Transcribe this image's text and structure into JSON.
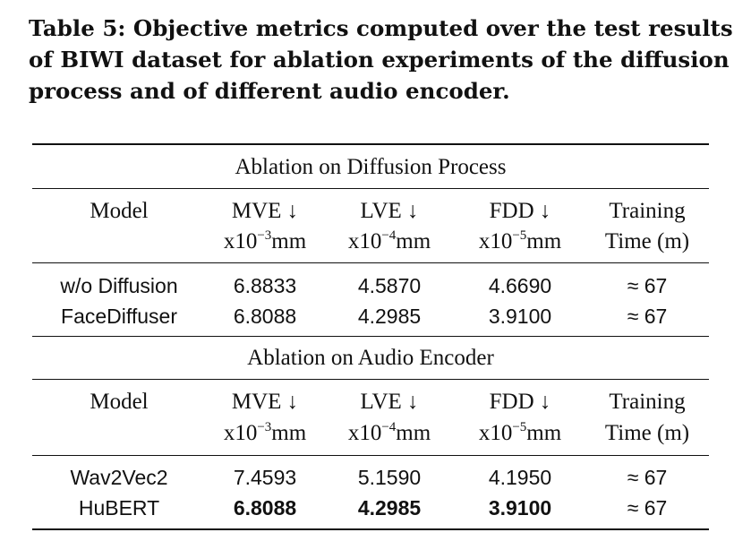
{
  "caption": {
    "line1": "Table 5: Objective metrics computed over the test results",
    "line2": "of BIWI dataset for ablation experiments of the diffusion",
    "line3": "process and of different audio encoder."
  },
  "units": {
    "mve": {
      "base": "x10",
      "exp": "−3",
      "unit": "mm"
    },
    "lve": {
      "base": "x10",
      "exp": "−4",
      "unit": "mm"
    },
    "fdd": {
      "base": "x10",
      "exp": "−5",
      "unit": "mm"
    }
  },
  "sections": [
    {
      "title": "Ablation on Diffusion Process",
      "headers": {
        "model": "Model",
        "mve": "MVE ↓",
        "lve": "LVE ↓",
        "fdd": "FDD ↓",
        "training_l1": "Training",
        "training_l2": "Time (m)"
      },
      "rows": [
        {
          "model": "w/o Diffusion",
          "mve": "6.8833",
          "lve": "4.5870",
          "fdd": "4.6690",
          "time": "≈ 67"
        },
        {
          "model": "FaceDiffuser",
          "mve": "6.8088",
          "lve": "4.2985",
          "fdd": "3.9100",
          "time": "≈ 67"
        }
      ]
    },
    {
      "title": "Ablation on Audio Encoder",
      "headers": {
        "model": "Model",
        "mve": "MVE ↓",
        "lve": "LVE ↓",
        "fdd": "FDD ↓",
        "training_l1": "Training",
        "training_l2": "Time (m)"
      },
      "rows": [
        {
          "model": "Wav2Vec2",
          "mve": "7.4593",
          "lve": "5.1590",
          "fdd": "4.1950",
          "time": "≈ 67"
        },
        {
          "model": "HuBERT",
          "mve": "6.8088",
          "lve": "4.2985",
          "fdd": "3.9100",
          "time": "≈ 67",
          "bold_metrics": true
        }
      ]
    }
  ]
}
